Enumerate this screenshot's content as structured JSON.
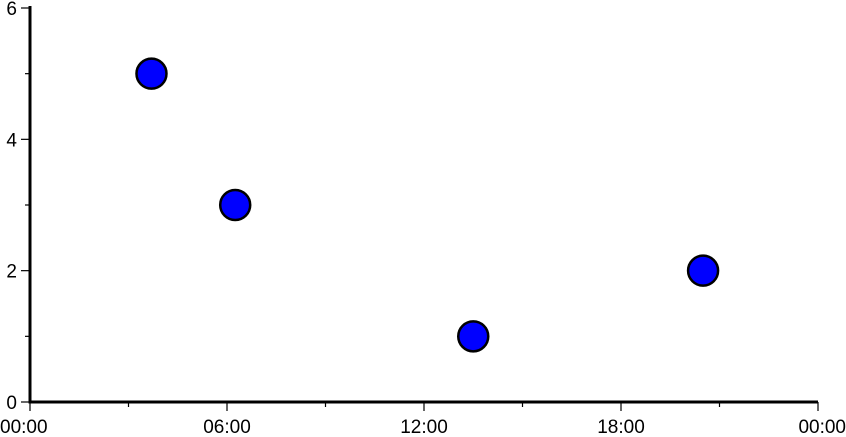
{
  "chart_data": {
    "type": "scatter",
    "title": "",
    "xlabel": "",
    "ylabel": "",
    "x_tick_labels": [
      "00:00",
      "06:00",
      "12:00",
      "18:00",
      "00:00"
    ],
    "x_tick_hours": [
      0,
      6,
      12,
      18,
      24
    ],
    "x_minor_tick_hours": [
      3,
      9,
      15,
      21
    ],
    "xlim_hours": [
      0,
      24
    ],
    "y_ticks": [
      0,
      2,
      4,
      6
    ],
    "y_minor_ticks": [
      1,
      3,
      5
    ],
    "ylim": [
      0,
      6
    ],
    "grid": false,
    "points": [
      {
        "x": "03:40",
        "hours": 3.7,
        "y": 5
      },
      {
        "x": "06:15",
        "hours": 6.25,
        "y": 3
      },
      {
        "x": "13:30",
        "hours": 13.5,
        "y": 1
      },
      {
        "x": "20:30",
        "hours": 20.5,
        "y": 2
      }
    ],
    "marker_fill": "#0000ff",
    "marker_edge": "#000000"
  }
}
